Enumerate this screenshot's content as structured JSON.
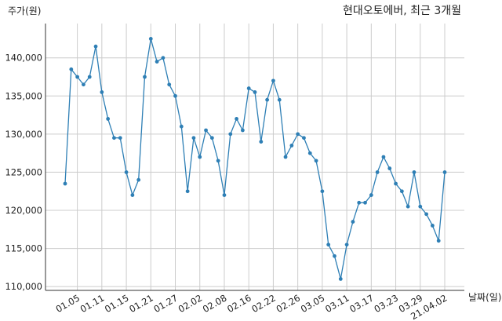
{
  "chart_data": {
    "type": "line",
    "title": "현대오토에버, 최근 3개월",
    "xlabel": "날짜(일)",
    "ylabel": "주가(원)",
    "color": "#2e7fb5",
    "grid": true,
    "ylim": [
      109500,
      144500
    ],
    "yticks": [
      110000,
      115000,
      120000,
      125000,
      130000,
      135000,
      140000
    ],
    "ytick_labels": [
      "110,000",
      "115,000",
      "120,000",
      "125,000",
      "130,000",
      "135,000",
      "140,000"
    ],
    "xtick_labels": [
      "01.05",
      "01.11",
      "01.15",
      "01.21",
      "01.27",
      "02.02",
      "02.08",
      "02.16",
      "02.22",
      "02.26",
      "03.05",
      "03.11",
      "03.17",
      "03.23",
      "03.29",
      "21.04.02"
    ],
    "xtick_index": [
      2,
      6,
      10,
      14,
      18,
      22,
      26,
      30,
      34,
      38,
      42,
      46,
      50,
      54,
      58,
      62
    ],
    "values": [
      123500,
      138500,
      137500,
      136500,
      137500,
      141500,
      135500,
      132000,
      129500,
      129500,
      125000,
      122000,
      124000,
      137500,
      142500,
      139500,
      140000,
      136500,
      135000,
      131000,
      122500,
      129500,
      127000,
      130500,
      129500,
      126500,
      122000,
      130000,
      132000,
      130500,
      136000,
      135500,
      129000,
      134500,
      137000,
      134500,
      127000,
      128500,
      130000,
      129500,
      127500,
      126500,
      122500,
      115500,
      114000,
      111000,
      115500,
      118500,
      121000,
      121000,
      122000,
      125000,
      127000,
      125500,
      123500,
      122500,
      120500,
      125000,
      120500,
      119500,
      118000,
      116000,
      125000
    ]
  }
}
